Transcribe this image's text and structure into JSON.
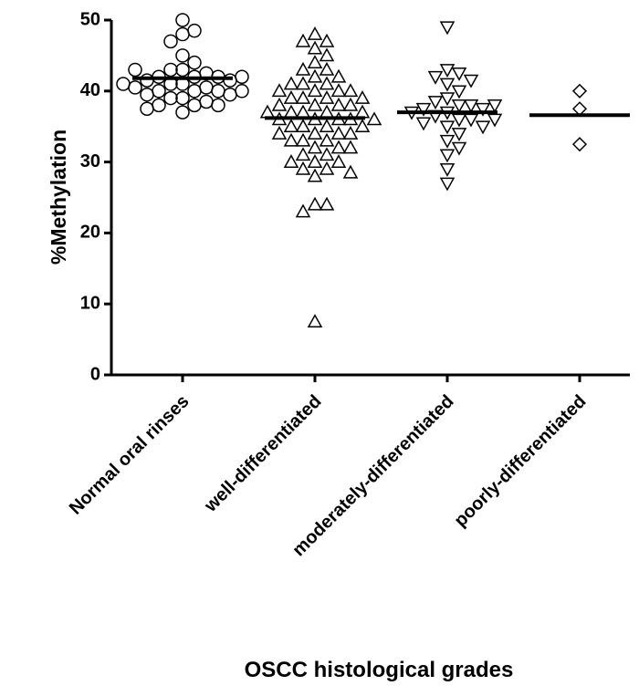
{
  "chart_data": {
    "type": "strip",
    "ylabel": "%Methylation",
    "xlabel": "OSCC histological grades",
    "categories": [
      "Normal oral rinses",
      "well-differentiated",
      "moderately-differentiated",
      "poorly-differentiated"
    ],
    "ylim": [
      0,
      50
    ],
    "yticks": [
      0,
      10,
      20,
      30,
      40,
      50
    ],
    "color": "#000000",
    "series": [
      {
        "marker": "circle",
        "values": [
          50,
          48.5,
          48,
          47,
          45,
          44,
          43,
          43,
          42.5,
          42,
          42,
          42,
          41.5,
          41.5,
          41,
          41,
          40.5,
          40.5,
          40,
          40,
          40,
          39.5,
          39.5,
          39,
          39,
          38.5,
          38,
          38,
          38,
          37.5,
          37,
          43,
          42,
          41,
          40
        ]
      },
      {
        "marker": "triangle-up",
        "values": [
          48,
          47,
          47,
          46,
          45,
          44,
          43,
          43,
          42,
          42,
          41,
          41,
          41,
          40,
          40,
          40,
          40,
          39,
          39,
          39,
          39,
          38,
          38,
          38,
          38,
          37,
          37,
          37,
          37,
          37,
          36,
          36,
          36,
          36,
          36,
          35,
          35,
          35,
          35,
          34,
          34,
          34,
          34,
          33,
          33,
          33,
          32,
          32,
          32,
          31,
          31,
          30,
          30,
          30,
          29,
          29,
          28.5,
          28,
          24,
          24,
          23,
          7.5
        ]
      },
      {
        "marker": "triangle-down",
        "values": [
          49,
          43,
          42.5,
          42,
          41.5,
          41,
          40,
          39,
          38.5,
          38,
          38,
          37.5,
          37.5,
          37,
          37,
          36.5,
          36,
          36,
          35.5,
          35,
          35,
          34,
          33,
          32,
          31,
          29,
          27,
          38,
          36
        ]
      },
      {
        "marker": "diamond",
        "values": [
          40,
          37.5,
          32.5
        ]
      }
    ],
    "medians": [
      41.8,
      36.2,
      37,
      36.6
    ]
  }
}
